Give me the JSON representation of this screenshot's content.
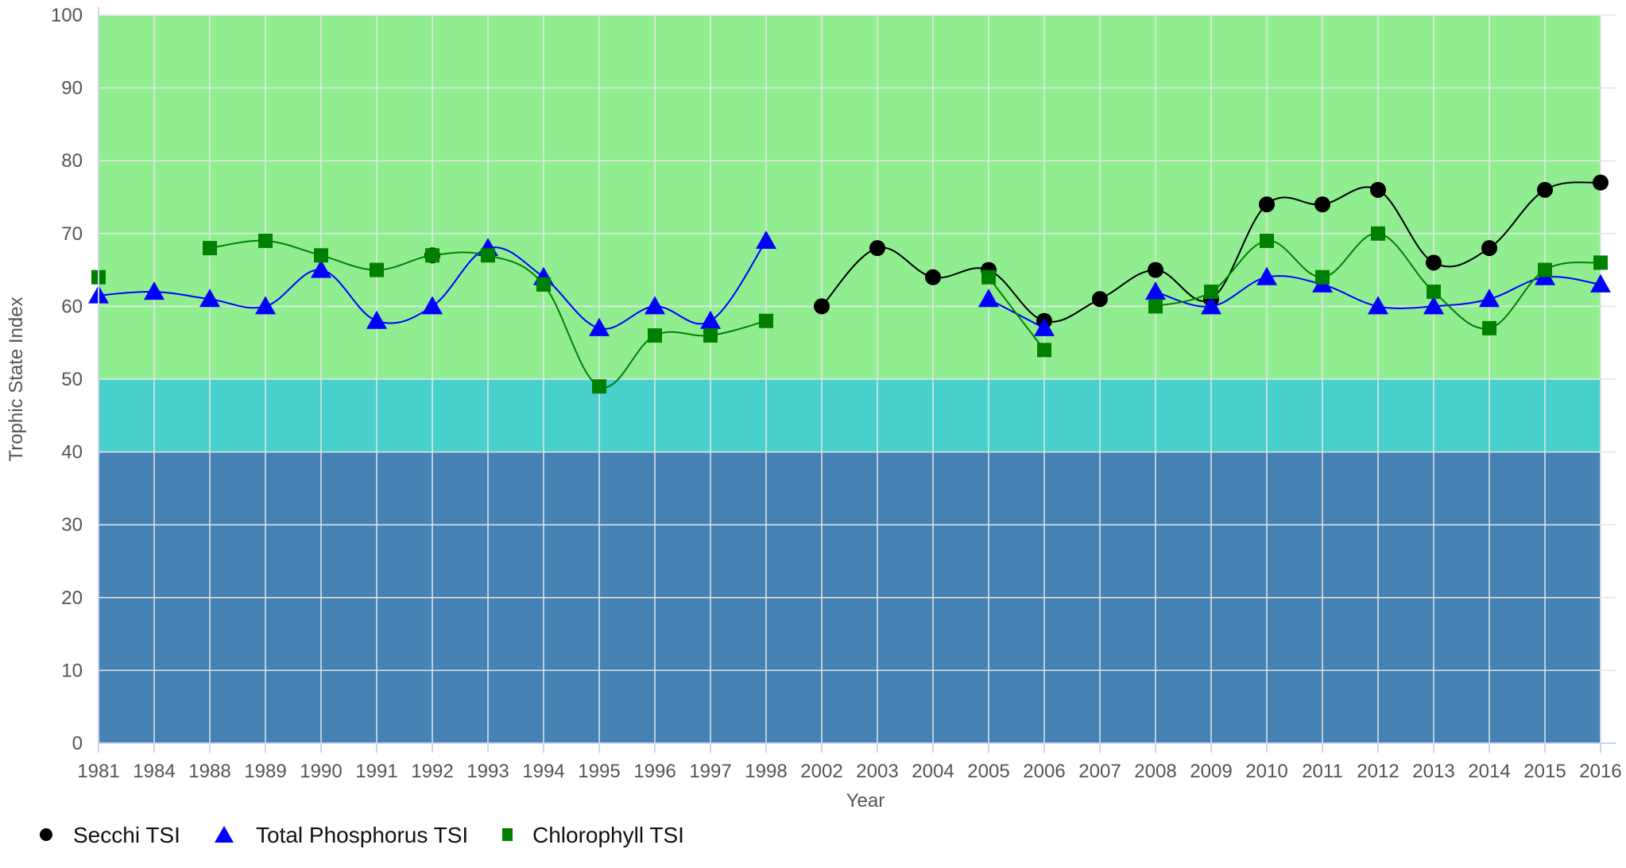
{
  "chart_data": {
    "type": "line",
    "title": "",
    "xlabel": "Year",
    "ylabel": "Trophic State Index",
    "ylim": [
      0,
      100
    ],
    "yticks": [
      0,
      10,
      20,
      30,
      40,
      50,
      60,
      70,
      80,
      90,
      100
    ],
    "categories": [
      "1981",
      "1984",
      "1988",
      "1989",
      "1990",
      "1991",
      "1992",
      "1993",
      "1994",
      "1995",
      "1996",
      "1997",
      "1998",
      "2002",
      "2003",
      "2004",
      "2005",
      "2006",
      "2007",
      "2008",
      "2009",
      "2010",
      "2011",
      "2012",
      "2013",
      "2014",
      "2015",
      "2016"
    ],
    "bands": [
      {
        "from": 0,
        "to": 40,
        "color": "#4682b4"
      },
      {
        "from": 40,
        "to": 50,
        "color": "#48d1cc"
      },
      {
        "from": 50,
        "to": 100,
        "color": "#90ee90"
      }
    ],
    "series": [
      {
        "name": "Secchi TSI",
        "color": "#000000",
        "marker": "circle",
        "values": [
          null,
          null,
          null,
          null,
          null,
          null,
          67,
          null,
          null,
          null,
          null,
          null,
          null,
          60,
          68,
          64,
          65,
          58,
          61,
          65,
          61,
          74,
          74,
          76,
          66,
          68,
          76,
          77
        ]
      },
      {
        "name": "Total Phosphorus TSI",
        "color": "#0000ff",
        "marker": "triangle",
        "values": [
          61.5,
          62,
          61,
          60,
          65,
          58,
          60,
          68,
          64,
          57,
          60,
          58,
          69,
          null,
          null,
          null,
          61,
          57,
          null,
          62,
          60,
          64,
          63,
          60,
          60,
          61,
          64,
          63
        ]
      },
      {
        "name": "Chlorophyll TSI",
        "color": "#008000",
        "marker": "square",
        "values": [
          64,
          null,
          68,
          69,
          67,
          65,
          67,
          67,
          63,
          49,
          56,
          56,
          58,
          null,
          null,
          null,
          64,
          54,
          null,
          60,
          62,
          69,
          64,
          70,
          62,
          57,
          65,
          66
        ]
      }
    ],
    "legend_position": "bottom-left"
  }
}
